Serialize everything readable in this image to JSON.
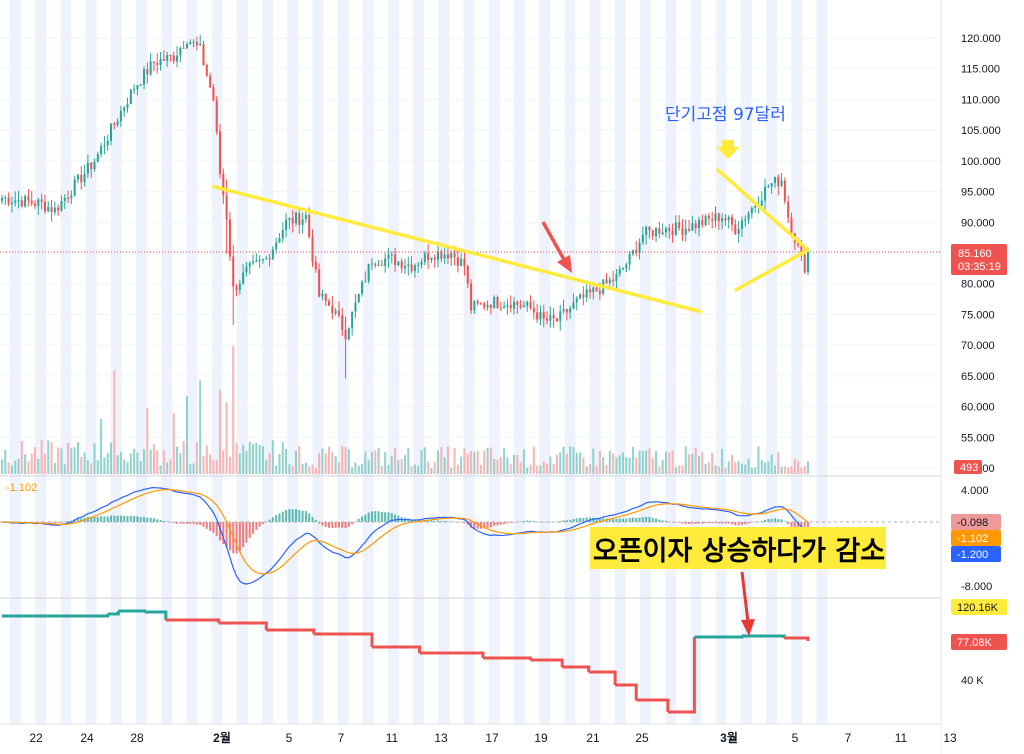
{
  "chart_data": [
    {
      "type": "candlestick",
      "name": "price",
      "y_ticks": [
        "120.000",
        "115.000",
        "110.000",
        "105.000",
        "100.000",
        "95.000",
        "90.000",
        "85.000",
        "80.000",
        "75.000",
        "70.000",
        "65.000",
        "60.000",
        "55.000",
        "50.000"
      ],
      "ylim": [
        50,
        122
      ],
      "current_price": "85.160",
      "countdown": "03:35:19",
      "current_value": 85.16,
      "colors": {
        "up": "#26a69a",
        "down": "#ef5350",
        "triangle": "#ffeb3b",
        "price_line": "#ef5350"
      },
      "volume_label": "493",
      "annotations": {
        "peak_label": "단기고점 97달러",
        "oi_label": "오픈이자 상승하다가 감소"
      },
      "triangle_lines": [
        {
          "from": {
            "date": "2025-01-31",
            "price": 95.8
          },
          "to": {
            "date": "2025-02-27",
            "price": 75.5
          }
        },
        {
          "from": {
            "date": "2025-02-28",
            "price": 98.5
          },
          "to": {
            "date": "2025-03-05",
            "price": 85.5
          }
        },
        {
          "from": {
            "date": "2025-03-01",
            "price": 79.0
          },
          "to": {
            "date": "2025-03-05",
            "price": 85.5
          }
        }
      ]
    },
    {
      "type": "line",
      "name": "macd",
      "header_value": "-1.102",
      "y_ticks": [
        "4.000",
        "-8.000"
      ],
      "ylim": [
        -10,
        6
      ],
      "readouts": [
        {
          "value": "-0.098",
          "color": "#ef9a9a"
        },
        {
          "value": "-1.102",
          "color": "#ff9800"
        },
        {
          "value": "-1.200",
          "color": "#2962ff"
        }
      ],
      "colors": {
        "macd": "#2962ff",
        "signal": "#ff9800",
        "hist_up": "#26a69a",
        "hist_down": "#ef5350"
      }
    },
    {
      "type": "step",
      "name": "open_interest",
      "y_ticks": [
        "40 K"
      ],
      "readouts": [
        {
          "value": "120.16K",
          "color": "#ffeb3b"
        },
        {
          "value": "77.08K",
          "color": "#ef5350"
        }
      ],
      "colors": {
        "up": "#26a69a",
        "down": "#ef5350"
      }
    }
  ],
  "x_axis": {
    "ticks": [
      {
        "label": "22",
        "bold": false
      },
      {
        "label": "24",
        "bold": false
      },
      {
        "label": "28",
        "bold": false
      },
      {
        "label": "2월",
        "bold": true
      },
      {
        "label": "5",
        "bold": false
      },
      {
        "label": "7",
        "bold": false
      },
      {
        "label": "11",
        "bold": false
      },
      {
        "label": "13",
        "bold": false
      },
      {
        "label": "17",
        "bold": false
      },
      {
        "label": "19",
        "bold": false
      },
      {
        "label": "21",
        "bold": false
      },
      {
        "label": "25",
        "bold": false
      },
      {
        "label": "3월",
        "bold": true
      },
      {
        "label": "5",
        "bold": false
      },
      {
        "label": "7",
        "bold": false
      },
      {
        "label": "11",
        "bold": false
      },
      {
        "label": "13",
        "bold": false
      }
    ]
  }
}
